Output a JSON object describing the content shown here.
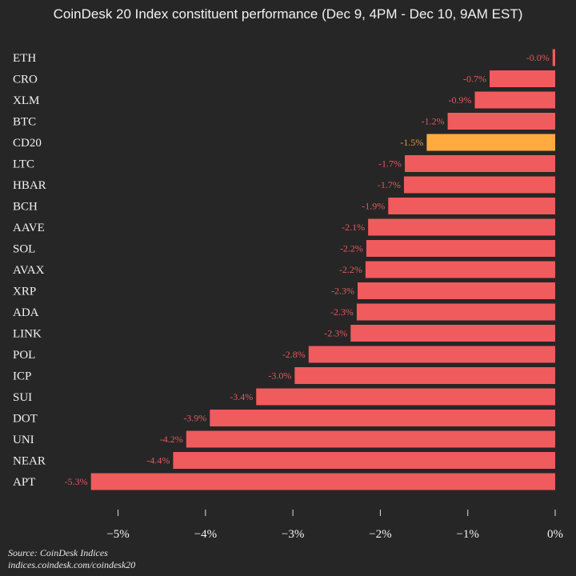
{
  "chart_data": {
    "type": "bar",
    "orientation": "horizontal",
    "title": "CoinDesk 20 Index constituent performance (Dec 9, 4PM - Dec 10, 9AM EST)",
    "categories": [
      "ETH",
      "CRO",
      "XLM",
      "BTC",
      "CD20",
      "LTC",
      "HBAR",
      "BCH",
      "AAVE",
      "SOL",
      "AVAX",
      "XRP",
      "ADA",
      "LINK",
      "POL",
      "ICP",
      "SUI",
      "DOT",
      "UNI",
      "NEAR",
      "APT"
    ],
    "values": [
      -0.03,
      -0.75,
      -0.92,
      -1.23,
      -1.47,
      -1.72,
      -1.73,
      -1.91,
      -2.14,
      -2.16,
      -2.17,
      -2.26,
      -2.27,
      -2.34,
      -2.82,
      -2.98,
      -3.42,
      -3.95,
      -4.22,
      -4.37,
      -5.31
    ],
    "data_labels": [
      "-0.0%",
      "-0.7%",
      "-0.9%",
      "-1.2%",
      "-1.5%",
      "-1.7%",
      "-1.7%",
      "-1.9%",
      "-2.1%",
      "-2.2%",
      "-2.2%",
      "-2.3%",
      "-2.3%",
      "-2.3%",
      "-2.8%",
      "-3.0%",
      "-3.4%",
      "-3.9%",
      "-4.2%",
      "-4.4%",
      "-5.3%"
    ],
    "highlight": "CD20",
    "xlim": [
      -5.6,
      0
    ],
    "xticks": [
      -5,
      -4,
      -3,
      -2,
      -1,
      0
    ],
    "xtick_labels": [
      "−5%",
      "−4%",
      "−3%",
      "−2%",
      "−1%",
      "0%"
    ],
    "xlabel": "",
    "ylabel": "",
    "grid": false,
    "colors": {
      "bar": "#f05b5d",
      "highlight": "#ffab40",
      "label": "#e05a5a",
      "highlight_label": "#d99a3c",
      "background": "#262626",
      "text": "#f2f2f2"
    }
  },
  "footer": {
    "source": "Source: CoinDesk Indices",
    "url": "indices.coindesk.com/coindesk20"
  }
}
